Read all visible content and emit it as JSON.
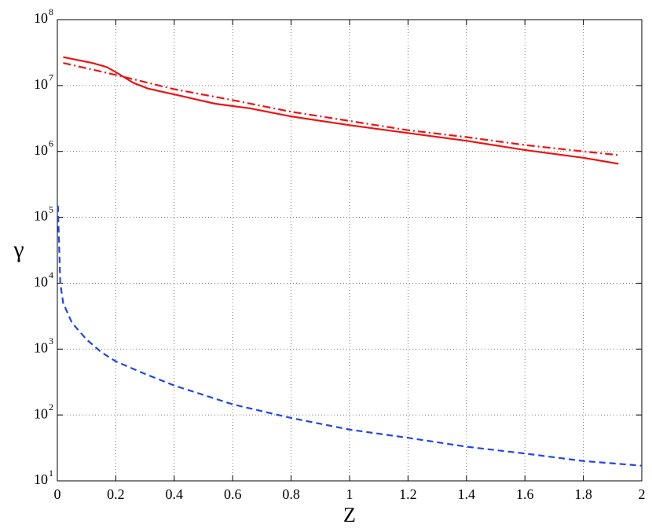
{
  "chart_data": {
    "type": "line",
    "xlabel": "Z",
    "ylabel": "γ",
    "yscale": "log",
    "grid": true,
    "xlim": [
      0,
      2
    ],
    "xticks": [
      0,
      0.2,
      0.4,
      0.6,
      0.8,
      1,
      1.2,
      1.4,
      1.6,
      1.8,
      2
    ],
    "ylim": [
      10,
      100000000
    ],
    "yticks": [
      {
        "value": 10,
        "label": "10",
        "exponent": "1"
      },
      {
        "value": 100,
        "label": "10",
        "exponent": "2"
      },
      {
        "value": 1000,
        "label": "10",
        "exponent": "3"
      },
      {
        "value": 10000,
        "label": "10",
        "exponent": "4"
      },
      {
        "value": 100000,
        "label": "10",
        "exponent": "5"
      },
      {
        "value": 1000000,
        "label": "10",
        "exponent": "6"
      },
      {
        "value": 10000000,
        "label": "10",
        "exponent": "7"
      },
      {
        "value": 100000000,
        "label": "10",
        "exponent": "8"
      }
    ],
    "series": [
      {
        "color": "#ee1111",
        "line_style": "solid",
        "x": [
          0.02,
          0.12,
          0.17,
          0.21,
          0.26,
          0.31,
          0.42,
          0.54,
          0.66,
          0.8,
          1.0,
          1.2,
          1.4,
          1.6,
          1.8,
          1.92
        ],
        "values": [
          27000000,
          22000000,
          19000000,
          15000000,
          11000000,
          9000000,
          7000000,
          5300000,
          4500000,
          3400000,
          2500000,
          1900000,
          1450000,
          1050000,
          800000,
          650000
        ]
      },
      {
        "color": "#ee1111",
        "line_style": "dashdot",
        "x": [
          0.02,
          0.2,
          0.4,
          0.6,
          0.8,
          1.0,
          1.2,
          1.4,
          1.6,
          1.8,
          1.92
        ],
        "values": [
          22000000,
          14500000,
          8800000,
          6000000,
          4000000,
          2900000,
          2100000,
          1650000,
          1250000,
          1000000,
          880000
        ]
      },
      {
        "color": "#1f45ee",
        "line_style": "dashed",
        "x": [
          0.002,
          0.01,
          0.02,
          0.05,
          0.1,
          0.15,
          0.2,
          0.3,
          0.4,
          0.6,
          0.8,
          1.0,
          1.2,
          1.4,
          1.6,
          1.8,
          2.0
        ],
        "values": [
          150000,
          10000,
          5000,
          2500,
          1400,
          900,
          650,
          420,
          280,
          145,
          90,
          60,
          45,
          33,
          26,
          20,
          17
        ]
      }
    ]
  }
}
